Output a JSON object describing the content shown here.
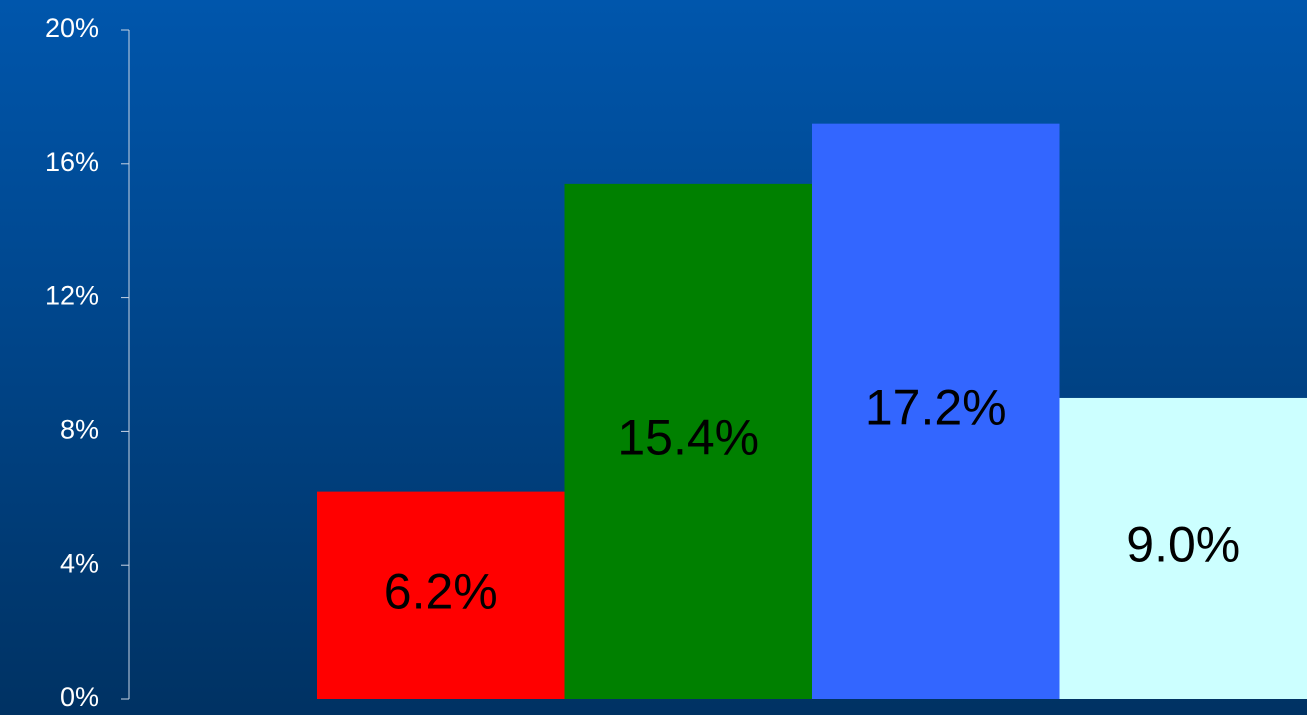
{
  "chart_data": {
    "type": "bar",
    "categories": [
      null,
      null,
      null,
      null
    ],
    "values": [
      6.2,
      15.4,
      17.2,
      9.0
    ],
    "value_labels": [
      "6.2%",
      "15.4%",
      "17.2%",
      "9.0%"
    ],
    "colors": [
      "#ff0000",
      "#008000",
      "#3366ff",
      "#ccffff"
    ],
    "ylim": [
      0,
      20
    ],
    "yticks": [
      {
        "value": 0,
        "label": "0%"
      },
      {
        "value": 4,
        "label": "4%"
      },
      {
        "value": 8,
        "label": "8%"
      },
      {
        "value": 12,
        "label": "12%"
      },
      {
        "value": 16,
        "label": "16%"
      },
      {
        "value": 20,
        "label": "20%"
      }
    ],
    "grid": false
  }
}
